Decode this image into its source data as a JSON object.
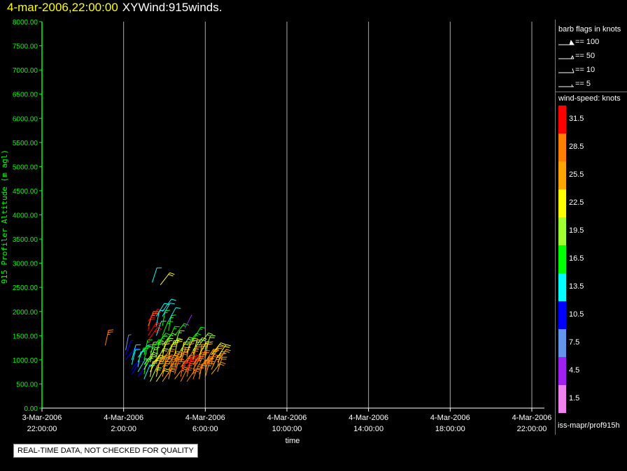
{
  "title": {
    "date": "4-mar-2006,22:00:00",
    "name": "XYWind:915winds."
  },
  "note": "REAL-TIME DATA, NOT CHECKED FOR QUALITY",
  "source_label": "iss-mapr/prof915h",
  "legend": {
    "barb_title": "barb flags in knots",
    "barbs": [
      {
        "label": "== 100",
        "icon": "barb-100-icon"
      },
      {
        "label": "== 50",
        "icon": "barb-50-icon"
      },
      {
        "label": "== 10",
        "icon": "barb-10-icon"
      },
      {
        "label": "== 5",
        "icon": "barb-5-icon"
      }
    ],
    "speed_title": "wind-speed: knots",
    "speed_bins": [
      {
        "label": "31.5",
        "color": "#ff0000"
      },
      {
        "label": "28.5",
        "color": "#ff7f00"
      },
      {
        "label": "25.5",
        "color": "#ffa500"
      },
      {
        "label": "22.5",
        "color": "#ffff00"
      },
      {
        "label": "19.5",
        "color": "#a0ff30"
      },
      {
        "label": "16.5",
        "color": "#00ff00"
      },
      {
        "label": "13.5",
        "color": "#00ffff"
      },
      {
        "label": "10.5",
        "color": "#0000ff"
      },
      {
        "label": "7.5",
        "color": "#6495ed"
      },
      {
        "label": "4.5",
        "color": "#a020f0"
      },
      {
        "label": "1.5",
        "color": "#ee82ee"
      }
    ]
  },
  "chart_data": {
    "type": "scatter",
    "xlabel": "time",
    "ylabel": "915 Profiler Altitude (m agl)",
    "xlim_hours_label": [
      "3-Mar-2006 22:00:00",
      "4-Mar-2006 22:00:00"
    ],
    "x_ticks": [
      {
        "l1": "3-Mar-2006",
        "l2": "22:00:00",
        "v": 0
      },
      {
        "l1": "4-Mar-2006",
        "l2": "2:00:00",
        "v": 4
      },
      {
        "l1": "4-Mar-2006",
        "l2": "6:00:00",
        "v": 8
      },
      {
        "l1": "4-Mar-2006",
        "l2": "10:00:00",
        "v": 12
      },
      {
        "l1": "4-Mar-2006",
        "l2": "14:00:00",
        "v": 16
      },
      {
        "l1": "4-Mar-2006",
        "l2": "18:00:00",
        "v": 20
      },
      {
        "l1": "4-Mar-2006",
        "l2": "22:00:00",
        "v": 24
      }
    ],
    "xlim": [
      0,
      24
    ],
    "ylim": [
      0,
      8000
    ],
    "y_ticks": [
      "0.00",
      "500.00",
      "1000.00",
      "1500.00",
      "2000.00",
      "2500.00",
      "3000.00",
      "3500.00",
      "4000.00",
      "4500.00",
      "5000.00",
      "5500.00",
      "6000.00",
      "6500.00",
      "7000.00",
      "7500.00",
      "8000.00"
    ],
    "grid": "vertical",
    "legend_position": "right",
    "axis_color": "#00ff00",
    "grid_color": "#aaaaaa",
    "series": [
      {
        "t": 4.1,
        "alt": [
          1000,
          1100,
          1200
        ],
        "speed": [
          10,
          9,
          8
        ]
      },
      {
        "t": 4.4,
        "alt": [
          700,
          800,
          900,
          1000
        ],
        "speed": [
          10,
          11,
          12,
          13
        ]
      },
      {
        "t": 4.7,
        "alt": [
          650,
          750,
          850,
          950,
          1050
        ],
        "speed": [
          11,
          12,
          14,
          15,
          12
        ]
      },
      {
        "t": 5.0,
        "alt": [
          600,
          700,
          800,
          900,
          1000,
          1100
        ],
        "speed": [
          14,
          16,
          18,
          20,
          17,
          15
        ]
      },
      {
        "t": 5.2,
        "alt": [
          1400,
          1500,
          1600,
          1700,
          1800
        ],
        "speed": [
          30,
          32,
          31,
          29,
          33
        ]
      },
      {
        "t": 5.3,
        "alt": [
          550,
          650,
          750,
          850,
          950,
          1050,
          1150
        ],
        "speed": [
          20,
          21,
          22,
          23,
          19,
          18,
          16
        ]
      },
      {
        "t": 5.6,
        "alt": [
          550,
          650,
          750,
          850,
          950,
          1050,
          1200,
          1300,
          1500,
          1700,
          1900
        ],
        "speed": [
          22,
          23,
          24,
          25,
          22,
          20,
          17,
          15,
          14,
          13,
          12
        ]
      },
      {
        "t": 5.9,
        "alt": [
          550,
          650,
          750,
          850,
          950,
          1050,
          1150,
          1300,
          1500,
          1700,
          1900,
          2000
        ],
        "speed": [
          24,
          25,
          26,
          27,
          24,
          22,
          20,
          18,
          16,
          15,
          14,
          13
        ]
      },
      {
        "t": 6.2,
        "alt": [
          600,
          700,
          800,
          900,
          1000,
          1100,
          1200,
          1400,
          1600,
          1800
        ],
        "speed": [
          25,
          27,
          28,
          26,
          24,
          21,
          19,
          17,
          15,
          13
        ]
      },
      {
        "t": 6.5,
        "alt": [
          600,
          700,
          800,
          900,
          1000,
          1100,
          1300,
          1500
        ],
        "speed": [
          26,
          28,
          29,
          27,
          25,
          22,
          19,
          16
        ]
      },
      {
        "t": 6.8,
        "alt": [
          550,
          650,
          750,
          850,
          950,
          1050,
          1200
        ],
        "speed": [
          27,
          29,
          30,
          28,
          26,
          23,
          18
        ]
      },
      {
        "t": 7.1,
        "alt": [
          550,
          650,
          750,
          850,
          950,
          1050,
          1150,
          1300
        ],
        "speed": [
          28,
          29,
          31,
          30,
          27,
          24,
          21,
          17
        ]
      },
      {
        "t": 7.4,
        "alt": [
          600,
          700,
          800,
          900,
          1000,
          1100,
          1200,
          1400
        ],
        "speed": [
          27,
          28,
          29,
          28,
          26,
          23,
          20,
          16
        ]
      },
      {
        "t": 7.7,
        "alt": [
          600,
          700,
          800,
          900,
          1000,
          1100,
          1300
        ],
        "speed": [
          26,
          27,
          28,
          27,
          25,
          22,
          18
        ]
      },
      {
        "t": 8.0,
        "alt": [
          650,
          750,
          850,
          950,
          1050,
          1200
        ],
        "speed": [
          25,
          27,
          28,
          26,
          24,
          20
        ]
      },
      {
        "t": 8.3,
        "alt": [
          700,
          800,
          900,
          1000,
          1100
        ],
        "speed": [
          24,
          26,
          27,
          25,
          23
        ]
      },
      {
        "t": 8.6,
        "alt": [
          750,
          850,
          950,
          1050
        ],
        "speed": [
          24,
          26,
          25,
          22
        ]
      },
      {
        "t": 3.1,
        "alt": [
          1300
        ],
        "speed": [
          28
        ]
      },
      {
        "t": 5.4,
        "alt": [
          2600
        ],
        "speed": [
          14
        ]
      },
      {
        "t": 5.8,
        "alt": [
          2550
        ],
        "speed": [
          22
        ]
      },
      {
        "t": 7.0,
        "alt": [
          1650
        ],
        "speed": [
          4
        ]
      }
    ]
  }
}
